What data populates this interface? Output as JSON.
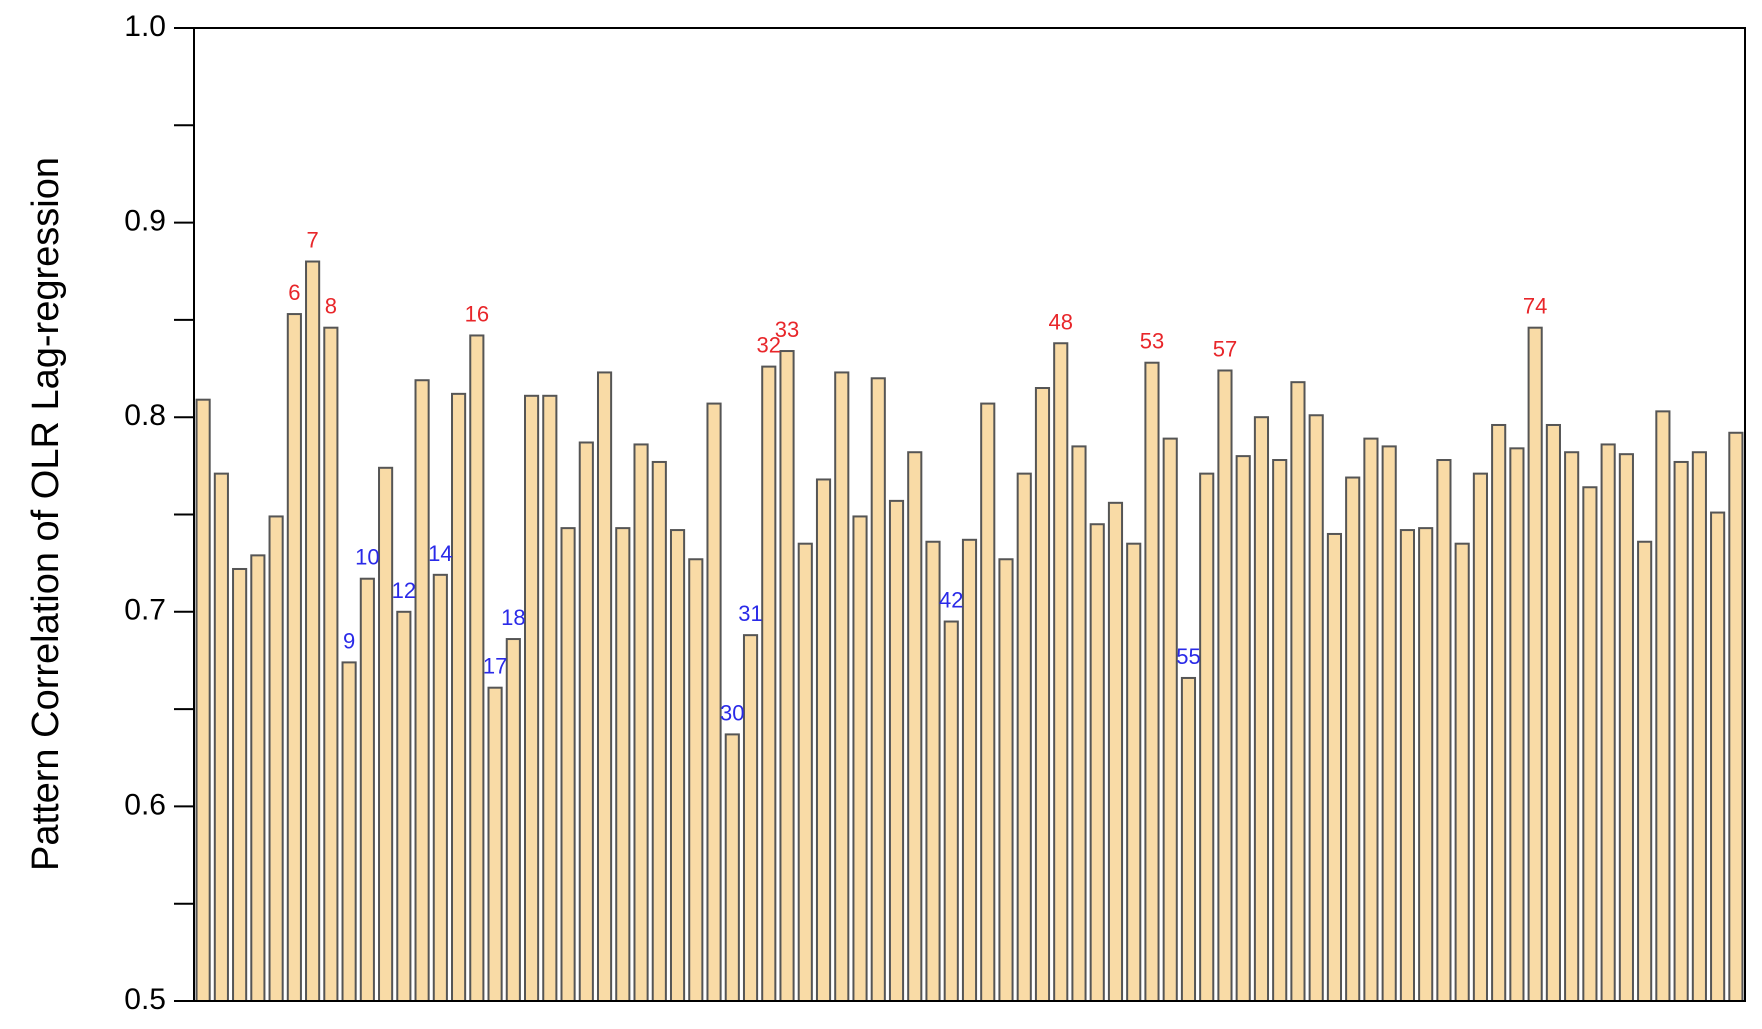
{
  "chart_data": {
    "type": "bar",
    "y_label": "Pattern Correlation of OLR Lag-regression",
    "values": [
      0.809,
      0.771,
      0.722,
      0.729,
      0.749,
      0.853,
      0.88,
      0.846,
      0.674,
      0.717,
      0.774,
      0.7,
      0.819,
      0.719,
      0.812,
      0.842,
      0.661,
      0.686,
      0.811,
      0.811,
      0.743,
      0.787,
      0.823,
      0.743,
      0.786,
      0.777,
      0.742,
      0.727,
      0.807,
      0.637,
      0.688,
      0.826,
      0.834,
      0.735,
      0.768,
      0.823,
      0.749,
      0.82,
      0.757,
      0.782,
      0.736,
      0.695,
      0.737,
      0.807,
      0.727,
      0.771,
      0.815,
      0.838,
      0.785,
      0.745,
      0.756,
      0.735,
      0.828,
      0.789,
      0.666,
      0.771,
      0.824,
      0.78,
      0.8,
      0.778,
      0.818,
      0.801,
      0.74,
      0.769,
      0.789,
      0.785,
      0.742,
      0.743,
      0.778,
      0.735,
      0.771,
      0.796,
      0.784,
      0.846,
      0.796,
      0.782,
      0.764,
      0.786,
      0.781,
      0.736,
      0.803,
      0.777,
      0.782,
      0.751,
      0.792
    ],
    "color": "#f9dba6",
    "edge_color": "#555555",
    "ylim": [
      0.5,
      1.0
    ],
    "yticks": [
      0.5,
      0.6,
      0.7,
      0.8,
      0.9,
      {
        "value": 1.0,
        "label": "1.0"
      }
    ],
    "minor_yticks": [
      0.55,
      0.65,
      0.75,
      0.85,
      0.95
    ],
    "annotations": [
      {
        "text": "6",
        "color": "#e8262a"
      },
      {
        "text": "7",
        "color": "#e8262a"
      },
      {
        "text": "8",
        "color": "#e8262a"
      },
      {
        "text": "9",
        "color": "#2a2ae8"
      },
      {
        "text": "10",
        "color": "#2a2ae8"
      },
      {
        "text": "12",
        "color": "#2a2ae8"
      },
      {
        "text": "14",
        "color": "#2a2ae8"
      },
      {
        "text": "16",
        "color": "#e8262a"
      },
      {
        "text": "17",
        "color": "#2a2ae8"
      },
      {
        "text": "18",
        "color": "#2a2ae8"
      },
      {
        "text": "30",
        "color": "#2a2ae8"
      },
      {
        "text": "31",
        "color": "#2a2ae8"
      },
      {
        "text": "32",
        "color": "#e8262a"
      },
      {
        "text": "33",
        "color": "#e8262a"
      },
      {
        "text": "42",
        "color": "#2a2ae8"
      },
      {
        "text": "48",
        "color": "#e8262a"
      },
      {
        "text": "53",
        "color": "#e8262a"
      },
      {
        "text": "55",
        "color": "#2a2ae8"
      },
      {
        "text": "57",
        "color": "#e8262a"
      },
      {
        "text": "74",
        "color": "#e8262a"
      }
    ]
  }
}
